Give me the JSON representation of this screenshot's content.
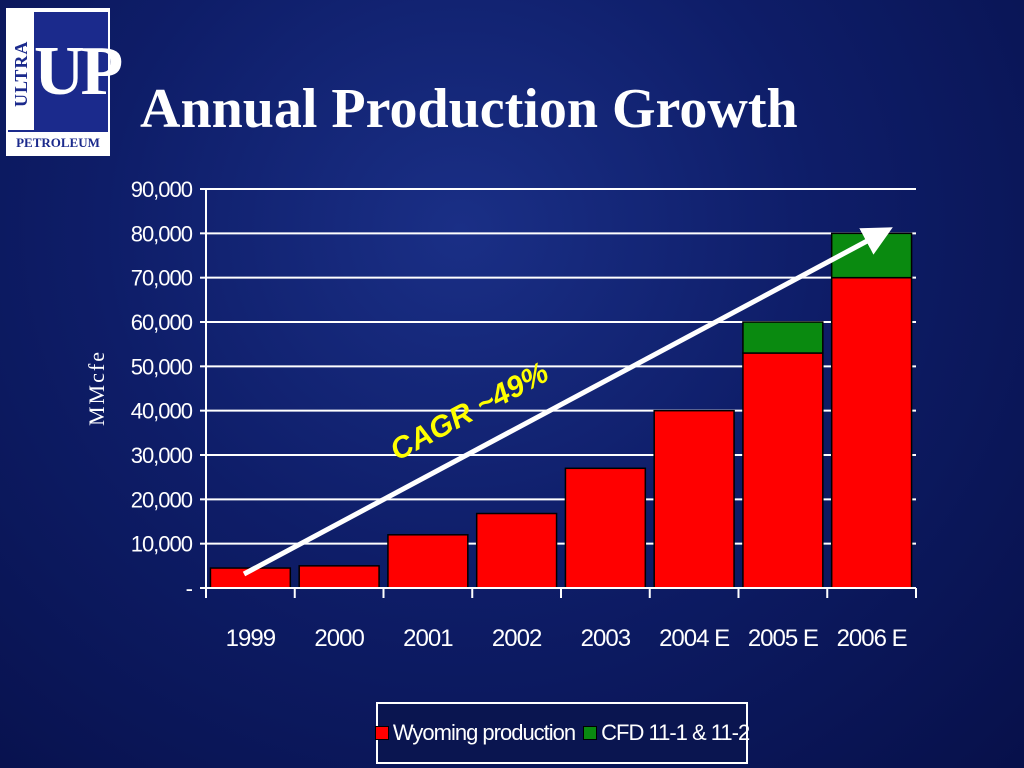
{
  "logo": {
    "side_text": "ULTRA",
    "main_text": "UP",
    "bottom_text": "PETROLEUM"
  },
  "slide": {
    "title": "Annual Production Growth"
  },
  "colors": {
    "wyoming": "#ff0000",
    "cfd": "#0a8a10",
    "axis": "#ffffff",
    "annotation": "#ffff00"
  },
  "chart_data": {
    "type": "bar",
    "stacked": true,
    "categories": [
      "1999",
      "2000",
      "2001",
      "2002",
      "2003",
      "2004 E",
      "2005 E",
      "2006 E"
    ],
    "series": [
      {
        "name": "Wyoming production",
        "values": [
          4500,
          5000,
          12000,
          16800,
          27000,
          40000,
          53000,
          70000
        ]
      },
      {
        "name": "CFD 11-1 & 11-2",
        "values": [
          0,
          0,
          0,
          0,
          0,
          0,
          7000,
          10000
        ]
      }
    ],
    "ylabel": "MMcfe",
    "ylim": [
      0,
      90000
    ],
    "yticks": [
      "-",
      "10,000",
      "20,000",
      "30,000",
      "40,000",
      "50,000",
      "60,000",
      "70,000",
      "80,000",
      "90,000"
    ],
    "grid": true,
    "legend_position": "bottom",
    "annotation": {
      "text": "CAGR ~49%"
    }
  }
}
